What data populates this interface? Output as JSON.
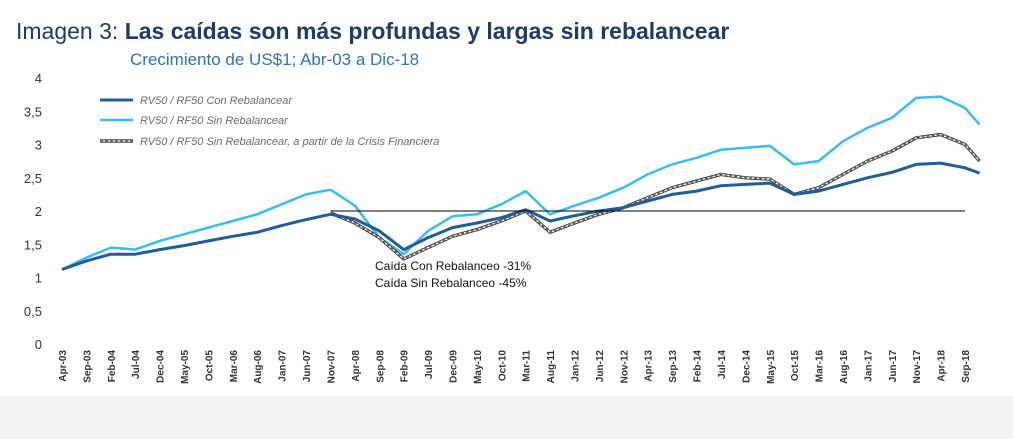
{
  "chart_data": {
    "type": "line",
    "title_prefix": "Imagen 3: ",
    "title": "Las caídas son más profundas y largas sin rebalancear",
    "subtitle": "Crecimiento de US$1; Abr-03 a Dic-18",
    "xlabel": "",
    "ylabel": "",
    "ylim": [
      0,
      4
    ],
    "y_ticks": [
      "0",
      "0,5",
      "1",
      "1,5",
      "2",
      "2,5",
      "3",
      "3,5",
      "4"
    ],
    "x_ticks": [
      "Apr-03",
      "Sep-03",
      "Feb-04",
      "Jul-04",
      "Dec-04",
      "May-05",
      "Oct-05",
      "Mar-06",
      "Aug-06",
      "Jan-07",
      "Jun-07",
      "Nov-07",
      "Apr-08",
      "Sep-08",
      "Feb-09",
      "Jul-09",
      "Dec-09",
      "May-10",
      "Oct-10",
      "Mar-11",
      "Aug-11",
      "Jan-12",
      "Jun-12",
      "Nov-12",
      "Apr-13",
      "Sep-13",
      "Feb-14",
      "Jul-14",
      "Dec-14",
      "May-15",
      "Oct-15",
      "Mar-16",
      "Aug-16",
      "Jan-17",
      "Jun-17",
      "Nov-17",
      "Apr-18",
      "Sep-18"
    ],
    "reference_line": 2.0,
    "legend_placement": "top-left",
    "annotations": [
      "Caída Con Rebalanceo -31%",
      "Caída Sin Rebalanceo -45%"
    ],
    "colors": {
      "con": "#1f5e9a",
      "sin": "#3bbcf0",
      "crisis": "#555555",
      "ref": "#000000"
    },
    "x": [
      "2003-04",
      "2003-09",
      "2004-02",
      "2004-07",
      "2004-12",
      "2005-05",
      "2005-10",
      "2006-03",
      "2006-08",
      "2007-01",
      "2007-06",
      "2007-11",
      "2008-04",
      "2008-09",
      "2009-02",
      "2009-07",
      "2009-12",
      "2010-05",
      "2010-10",
      "2011-03",
      "2011-08",
      "2012-01",
      "2012-06",
      "2012-11",
      "2013-04",
      "2013-09",
      "2014-02",
      "2014-07",
      "2014-12",
      "2015-05",
      "2015-10",
      "2016-03",
      "2016-08",
      "2017-01",
      "2017-06",
      "2017-11",
      "2018-04",
      "2018-09",
      "2018-12"
    ],
    "series": [
      {
        "name": "RV50 / RF50 Con Rebalancear",
        "values": [
          1.12,
          1.25,
          1.35,
          1.35,
          1.42,
          1.48,
          1.55,
          1.62,
          1.68,
          1.78,
          1.87,
          1.95,
          1.88,
          1.7,
          1.42,
          1.6,
          1.75,
          1.82,
          1.9,
          2.02,
          1.85,
          1.93,
          2.0,
          2.05,
          2.15,
          2.25,
          2.3,
          2.38,
          2.4,
          2.42,
          2.25,
          2.3,
          2.4,
          2.5,
          2.58,
          2.7,
          2.72,
          2.65,
          2.57
        ]
      },
      {
        "name": "RV50 / RF50 Sin Rebalancear",
        "values": [
          1.12,
          1.3,
          1.45,
          1.42,
          1.55,
          1.65,
          1.75,
          1.85,
          1.95,
          2.1,
          2.25,
          2.32,
          2.08,
          1.6,
          1.35,
          1.7,
          1.92,
          1.95,
          2.1,
          2.3,
          1.95,
          2.08,
          2.2,
          2.35,
          2.55,
          2.7,
          2.8,
          2.92,
          2.95,
          2.98,
          2.7,
          2.75,
          3.05,
          3.25,
          3.4,
          3.7,
          3.72,
          3.55,
          3.3
        ]
      },
      {
        "name": "RV50 / RF50 Sin Rebalancear, a partir de la Crisis Financiera",
        "values": [
          null,
          null,
          null,
          null,
          null,
          null,
          null,
          null,
          null,
          null,
          null,
          1.97,
          1.82,
          1.6,
          1.28,
          1.45,
          1.62,
          1.72,
          1.85,
          2.0,
          1.68,
          1.82,
          1.95,
          2.05,
          2.2,
          2.35,
          2.45,
          2.55,
          2.5,
          2.48,
          2.25,
          2.35,
          2.55,
          2.75,
          2.9,
          3.1,
          3.15,
          3.0,
          2.75
        ]
      }
    ]
  }
}
